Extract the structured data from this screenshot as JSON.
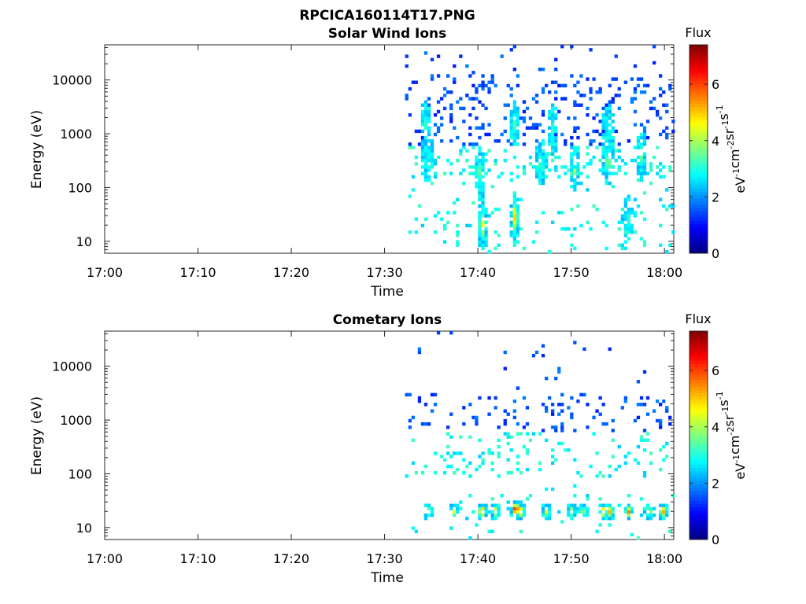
{
  "figure": {
    "title": "RPCICA160114T17.PNG",
    "colorbar": {
      "label": "Flux",
      "unit_parts": [
        "eV",
        "-1",
        "cm",
        "-2",
        "sr",
        "-1",
        "s",
        "-1"
      ],
      "range": [
        0,
        7.4
      ],
      "ticks": [
        0,
        2,
        4,
        6
      ],
      "colormap": "jet"
    }
  },
  "chart_data": [
    {
      "type": "heatmap",
      "title": "Solar Wind Ions",
      "xlabel": "Time",
      "ylabel": "Energy (eV)",
      "x_ticks": [
        "17:00",
        "17:10",
        "17:20",
        "17:30",
        "17:40",
        "17:50",
        "18:00"
      ],
      "y_ticks": [
        "10",
        "100",
        "1000",
        "10000"
      ],
      "y_scale": "log",
      "ylim": [
        6,
        45000
      ],
      "xlim_minutes_after_17": [
        0,
        61
      ],
      "data_start": "17:32",
      "colorbar_label": "Flux",
      "clusters": [
        {
          "t": 34.2,
          "e": 1500,
          "f": 3.2
        },
        {
          "t": 34.5,
          "e": 350,
          "f": 3.0
        },
        {
          "t": 40.1,
          "e": 200,
          "f": 3.6
        },
        {
          "t": 43.8,
          "e": 1500,
          "f": 3.4
        },
        {
          "t": 43.8,
          "e": 28,
          "f": 5.0
        },
        {
          "t": 46.6,
          "e": 300,
          "f": 3.5
        },
        {
          "t": 47.9,
          "e": 1200,
          "f": 3.2
        },
        {
          "t": 50.2,
          "e": 250,
          "f": 4.3
        },
        {
          "t": 53.8,
          "e": 300,
          "f": 4.0
        },
        {
          "t": 53.8,
          "e": 1400,
          "f": 3.1
        },
        {
          "t": 57.4,
          "e": 400,
          "f": 3.6
        },
        {
          "t": 40.3,
          "e": 20,
          "f": 4.6
        },
        {
          "t": 55.9,
          "e": 25,
          "f": 3.2
        }
      ]
    },
    {
      "type": "heatmap",
      "title": "Cometary Ions",
      "xlabel": "Time",
      "ylabel": "Energy (eV)",
      "x_ticks": [
        "17:00",
        "17:10",
        "17:20",
        "17:30",
        "17:40",
        "17:50",
        "18:00"
      ],
      "y_ticks": [
        "10",
        "100",
        "1000",
        "10000"
      ],
      "y_scale": "log",
      "ylim": [
        6,
        45000
      ],
      "xlim_minutes_after_17": [
        0,
        61
      ],
      "data_start": "17:32",
      "colorbar_label": "Flux",
      "clusters": [
        {
          "t": 34.5,
          "e": 20,
          "f": 4.2
        },
        {
          "t": 37.3,
          "e": 20,
          "f": 4.5
        },
        {
          "t": 40.3,
          "e": 20,
          "f": 6.0
        },
        {
          "t": 41.7,
          "e": 20,
          "f": 5.0
        },
        {
          "t": 43.9,
          "e": 22,
          "f": 6.6
        },
        {
          "t": 44.4,
          "e": 20,
          "f": 5.8
        },
        {
          "t": 47.2,
          "e": 20,
          "f": 4.8
        },
        {
          "t": 49.9,
          "e": 20,
          "f": 4.5
        },
        {
          "t": 53.3,
          "e": 20,
          "f": 5.5
        },
        {
          "t": 54.0,
          "e": 20,
          "f": 5.2
        },
        {
          "t": 56.0,
          "e": 20,
          "f": 5.6
        },
        {
          "t": 59.7,
          "e": 20,
          "f": 5.3
        },
        {
          "t": 51.1,
          "e": 20,
          "f": 4.2
        },
        {
          "t": 58.2,
          "e": 20,
          "f": 4.4
        }
      ]
    }
  ]
}
